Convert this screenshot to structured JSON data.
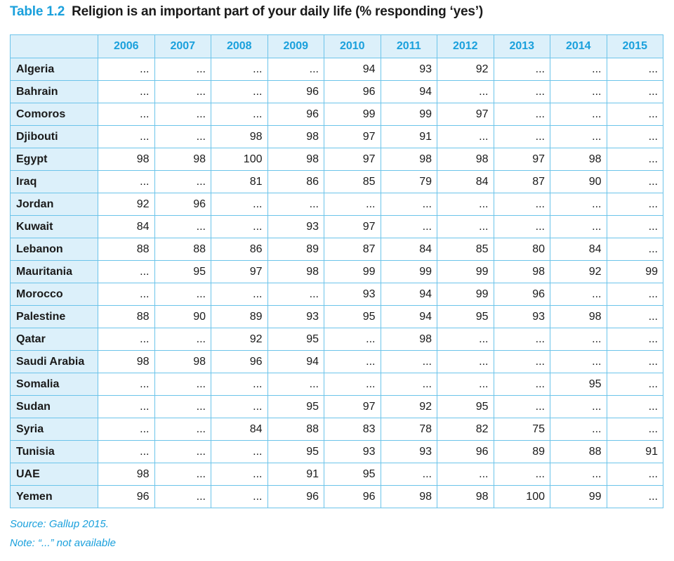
{
  "title": {
    "number": "Table 1.2",
    "text": "Religion is an important part of your daily life (% responding ‘yes’)"
  },
  "table": {
    "years": [
      "2006",
      "2007",
      "2008",
      "2009",
      "2010",
      "2011",
      "2012",
      "2013",
      "2014",
      "2015"
    ],
    "rows": [
      {
        "country": "Algeria",
        "values": [
          "...",
          "...",
          "...",
          "...",
          "94",
          "93",
          "92",
          "...",
          "...",
          "..."
        ]
      },
      {
        "country": "Bahrain",
        "values": [
          "...",
          "...",
          "...",
          "96",
          "96",
          "94",
          "...",
          "...",
          "...",
          "..."
        ]
      },
      {
        "country": "Comoros",
        "values": [
          "...",
          "...",
          "...",
          "96",
          "99",
          "99",
          "97",
          "...",
          "...",
          "..."
        ]
      },
      {
        "country": "Djibouti",
        "values": [
          "...",
          "...",
          "98",
          "98",
          "97",
          "91",
          "...",
          "...",
          "...",
          "..."
        ]
      },
      {
        "country": "Egypt",
        "values": [
          "98",
          "98",
          "100",
          "98",
          "97",
          "98",
          "98",
          "97",
          "98",
          "..."
        ]
      },
      {
        "country": "Iraq",
        "values": [
          "...",
          "...",
          "81",
          "86",
          "85",
          "79",
          "84",
          "87",
          "90",
          "..."
        ]
      },
      {
        "country": "Jordan",
        "values": [
          "92",
          "96",
          "...",
          "...",
          "...",
          "...",
          "...",
          "...",
          "...",
          "..."
        ]
      },
      {
        "country": "Kuwait",
        "values": [
          "84",
          "...",
          "...",
          "93",
          "97",
          "...",
          "...",
          "...",
          "...",
          "..."
        ]
      },
      {
        "country": "Lebanon",
        "values": [
          "88",
          "88",
          "86",
          "89",
          "87",
          "84",
          "85",
          "80",
          "84",
          "..."
        ]
      },
      {
        "country": "Mauritania",
        "values": [
          "...",
          "95",
          "97",
          "98",
          "99",
          "99",
          "99",
          "98",
          "92",
          "99"
        ]
      },
      {
        "country": "Morocco",
        "values": [
          "...",
          "...",
          "...",
          "...",
          "93",
          "94",
          "99",
          "96",
          "...",
          "..."
        ]
      },
      {
        "country": "Palestine",
        "values": [
          "88",
          "90",
          "89",
          "93",
          "95",
          "94",
          "95",
          "93",
          "98",
          "..."
        ]
      },
      {
        "country": "Qatar",
        "values": [
          "...",
          "...",
          "92",
          "95",
          "...",
          "98",
          "...",
          "...",
          "...",
          "..."
        ]
      },
      {
        "country": "Saudi Arabia",
        "values": [
          "98",
          "98",
          "96",
          "94",
          "...",
          "...",
          "...",
          "...",
          "...",
          "..."
        ]
      },
      {
        "country": "Somalia",
        "values": [
          "...",
          "...",
          "...",
          "...",
          "...",
          "...",
          "...",
          "...",
          "95",
          "..."
        ]
      },
      {
        "country": "Sudan",
        "values": [
          "...",
          "...",
          "...",
          "95",
          "97",
          "92",
          "95",
          "...",
          "...",
          "..."
        ]
      },
      {
        "country": "Syria",
        "values": [
          "...",
          "...",
          "84",
          "88",
          "83",
          "78",
          "82",
          "75",
          "...",
          "..."
        ]
      },
      {
        "country": "Tunisia",
        "values": [
          "...",
          "...",
          "...",
          "95",
          "93",
          "93",
          "96",
          "89",
          "88",
          "91"
        ]
      },
      {
        "country": "UAE",
        "values": [
          "98",
          "...",
          "...",
          "91",
          "95",
          "...",
          "...",
          "...",
          "...",
          "..."
        ]
      },
      {
        "country": "Yemen",
        "values": [
          "96",
          "...",
          "...",
          "96",
          "96",
          "98",
          "98",
          "100",
          "99",
          "..."
        ]
      }
    ]
  },
  "notes": {
    "source": "Source: Gallup 2015.",
    "note": "Note: “...” not available"
  }
}
